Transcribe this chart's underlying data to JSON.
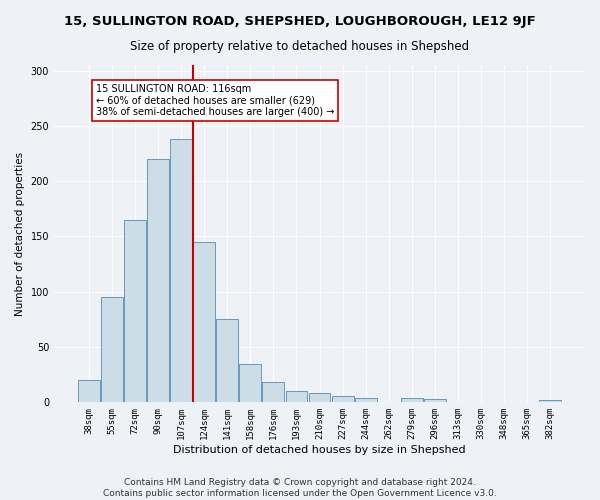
{
  "title": "15, SULLINGTON ROAD, SHEPSHED, LOUGHBOROUGH, LE12 9JF",
  "subtitle": "Size of property relative to detached houses in Shepshed",
  "xlabel": "Distribution of detached houses by size in Shepshed",
  "ylabel": "Number of detached properties",
  "bar_labels": [
    "38sqm",
    "55sqm",
    "72sqm",
    "90sqm",
    "107sqm",
    "124sqm",
    "141sqm",
    "158sqm",
    "176sqm",
    "193sqm",
    "210sqm",
    "227sqm",
    "244sqm",
    "262sqm",
    "279sqm",
    "296sqm",
    "313sqm",
    "330sqm",
    "348sqm",
    "365sqm",
    "382sqm"
  ],
  "bar_heights": [
    20,
    95,
    165,
    220,
    238,
    145,
    75,
    35,
    18,
    10,
    8,
    6,
    4,
    0,
    4,
    3,
    0,
    0,
    0,
    0,
    2
  ],
  "bar_color": "#ccdde8",
  "bar_edge_color": "#6699bb",
  "vline_color": "#cc0000",
  "annotation_text": "15 SULLINGTON ROAD: 116sqm\n← 60% of detached houses are smaller (629)\n38% of semi-detached houses are larger (400) →",
  "annotation_box_color": "#ffffff",
  "annotation_box_edge": "#cc0000",
  "ylim": [
    0,
    305
  ],
  "yticks": [
    0,
    50,
    100,
    150,
    200,
    250,
    300
  ],
  "footer": "Contains HM Land Registry data © Crown copyright and database right 2024.\nContains public sector information licensed under the Open Government Licence v3.0.",
  "bg_color": "#eef2f7",
  "plot_bg_color": "#eef2f7",
  "title_fontsize": 9.5,
  "subtitle_fontsize": 8.5,
  "xlabel_fontsize": 8,
  "ylabel_fontsize": 7.5,
  "tick_fontsize": 6.5,
  "ytick_fontsize": 7,
  "footer_fontsize": 6.5,
  "annot_fontsize": 7
}
